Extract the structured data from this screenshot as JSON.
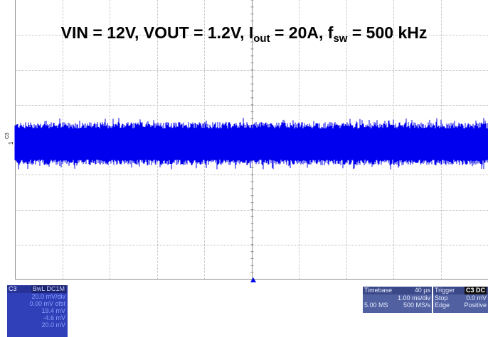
{
  "title": {
    "vin": "VIN = 12V, VOUT = 1.2V, I",
    "iout_sub": "out",
    "mid": " = 20A, f",
    "fsw_sub": "sw",
    "end": " = 500 kHz"
  },
  "channel_marker": {
    "name": "C3",
    "level": "1"
  },
  "trace_color": "#0000ee",
  "channel_box": {
    "label": "C3",
    "badge": "BwL DC1M",
    "scale": "20.0 mV/div",
    "offset": "0.00 mV ofst",
    "rows": [
      {
        "label": "",
        "value": "19.4 mV"
      },
      {
        "label": "",
        "value": "-4.6 mV"
      },
      {
        "label": "",
        "value": "20.0 mV"
      }
    ]
  },
  "timebase": {
    "label": "Timebase",
    "delay": "40 µs",
    "per_div": "1.00 ms/div",
    "samples": "5.00 MS",
    "rate": "500 MS/s"
  },
  "trigger": {
    "label": "Trigger",
    "badge": "C3 DC",
    "mode": "Stop",
    "level": "0.0 mV",
    "type": "Edge",
    "slope": "Positive"
  }
}
